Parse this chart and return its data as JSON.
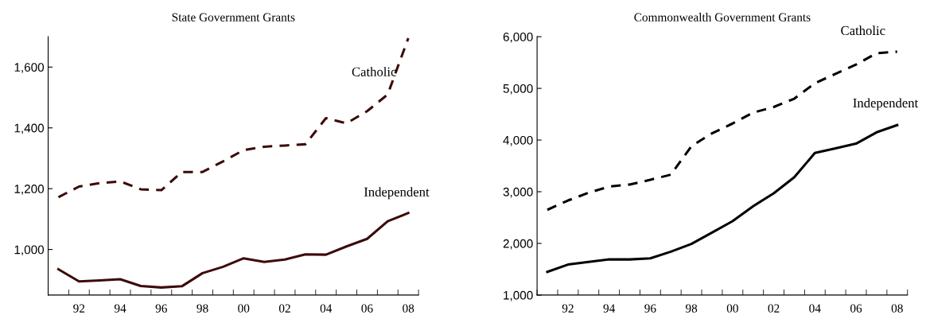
{
  "chart_data": [
    {
      "type": "line",
      "title": "State Government Grants",
      "x": [
        1991,
        1992,
        1993,
        1994,
        1995,
        1996,
        1997,
        1998,
        1999,
        2000,
        2001,
        2002,
        2003,
        2004,
        2005,
        2006,
        2007,
        2008
      ],
      "series": [
        {
          "name": "Catholic",
          "color": "#3d0a0a",
          "line_style": "dashed",
          "values": [
            1172,
            1207,
            1218,
            1224,
            1198,
            1195,
            1255,
            1255,
            1290,
            1327,
            1338,
            1342,
            1346,
            1432,
            1415,
            1455,
            1510,
            1695
          ]
        },
        {
          "name": "Independent",
          "color": "#3d0a0a",
          "line_style": "solid",
          "values": [
            935,
            895,
            898,
            902,
            880,
            875,
            879,
            922,
            943,
            971,
            959,
            967,
            984,
            983,
            1010,
            1035,
            1093,
            1120
          ]
        }
      ],
      "xlim": [
        1990.5,
        2008.5
      ],
      "xticks": [
        {
          "value": 1990.5,
          "label": null
        },
        {
          "value": 1991.5,
          "label": null
        },
        {
          "value": 1992,
          "label": "92"
        },
        {
          "value": 1992.5,
          "label": null
        },
        {
          "value": 1993.5,
          "label": null
        },
        {
          "value": 1994,
          "label": "94"
        },
        {
          "value": 1994.5,
          "label": null
        },
        {
          "value": 1995.5,
          "label": null
        },
        {
          "value": 1996,
          "label": "96"
        },
        {
          "value": 1996.5,
          "label": null
        },
        {
          "value": 1997.5,
          "label": null
        },
        {
          "value": 1998,
          "label": "98"
        },
        {
          "value": 1998.5,
          "label": null
        },
        {
          "value": 1999.5,
          "label": null
        },
        {
          "value": 2000,
          "label": "00"
        },
        {
          "value": 2000.5,
          "label": null
        },
        {
          "value": 2001.5,
          "label": null
        },
        {
          "value": 2002,
          "label": "02"
        },
        {
          "value": 2002.5,
          "label": null
        },
        {
          "value": 2003.5,
          "label": null
        },
        {
          "value": 2004,
          "label": "04"
        },
        {
          "value": 2004.5,
          "label": null
        },
        {
          "value": 2005.5,
          "label": null
        },
        {
          "value": 2006,
          "label": "06"
        },
        {
          "value": 2006.5,
          "label": null
        },
        {
          "value": 2007.5,
          "label": null
        },
        {
          "value": 2008,
          "label": "08"
        },
        {
          "value": 2008.5,
          "label": null
        }
      ],
      "ylim": [
        850,
        1700
      ],
      "yticks": [
        {
          "value": 1000,
          "label": "1,000"
        },
        {
          "value": 1200,
          "label": "1,200"
        },
        {
          "value": 1400,
          "label": "1,400"
        },
        {
          "value": 1600,
          "label": "1,600"
        }
      ],
      "grid": false,
      "legend": false
    },
    {
      "type": "line",
      "title": "Commonwealth Government Grants",
      "x": [
        1991,
        1992,
        1993,
        1994,
        1995,
        1996,
        1997,
        1998,
        1999,
        2000,
        2001,
        2002,
        2003,
        2004,
        2005,
        2006,
        2007,
        2008
      ],
      "series": [
        {
          "name": "Catholic",
          "color": "#000000",
          "line_style": "dashed",
          "values": [
            2650,
            2830,
            2980,
            3100,
            3140,
            3230,
            3330,
            3880,
            4130,
            4320,
            4530,
            4640,
            4800,
            5100,
            5280,
            5460,
            5680,
            5710
          ]
        },
        {
          "name": "Independent",
          "color": "#000000",
          "line_style": "solid",
          "values": [
            1450,
            1590,
            1640,
            1690,
            1690,
            1710,
            1840,
            1990,
            2210,
            2430,
            2720,
            2970,
            3280,
            3750,
            3840,
            3930,
            4150,
            4290
          ]
        }
      ],
      "xlim": [
        1990.5,
        2008.5
      ],
      "xticks": [
        {
          "value": 1990.5,
          "label": null
        },
        {
          "value": 1991.5,
          "label": null
        },
        {
          "value": 1992,
          "label": "92"
        },
        {
          "value": 1992.5,
          "label": null
        },
        {
          "value": 1993.5,
          "label": null
        },
        {
          "value": 1994,
          "label": "94"
        },
        {
          "value": 1994.5,
          "label": null
        },
        {
          "value": 1995.5,
          "label": null
        },
        {
          "value": 1996,
          "label": "96"
        },
        {
          "value": 1996.5,
          "label": null
        },
        {
          "value": 1997.5,
          "label": null
        },
        {
          "value": 1998,
          "label": "98"
        },
        {
          "value": 1998.5,
          "label": null
        },
        {
          "value": 1999.5,
          "label": null
        },
        {
          "value": 2000,
          "label": "00"
        },
        {
          "value": 2000.5,
          "label": null
        },
        {
          "value": 2001.5,
          "label": null
        },
        {
          "value": 2002,
          "label": "02"
        },
        {
          "value": 2002.5,
          "label": null
        },
        {
          "value": 2003.5,
          "label": null
        },
        {
          "value": 2004,
          "label": "04"
        },
        {
          "value": 2004.5,
          "label": null
        },
        {
          "value": 2005.5,
          "label": null
        },
        {
          "value": 2006,
          "label": "06"
        },
        {
          "value": 2006.5,
          "label": null
        },
        {
          "value": 2007.5,
          "label": null
        },
        {
          "value": 2008,
          "label": "08"
        },
        {
          "value": 2008.5,
          "label": null
        }
      ],
      "ylim": [
        1000,
        6000
      ],
      "yticks": [
        {
          "value": 1000,
          "label": "1,000"
        },
        {
          "value": 2000,
          "label": "2,000"
        },
        {
          "value": 3000,
          "label": "3,000"
        },
        {
          "value": 4000,
          "label": "4,000"
        },
        {
          "value": 5000,
          "label": "5,000"
        },
        {
          "value": 6000,
          "label": "6,000"
        }
      ],
      "grid": false,
      "legend": false
    }
  ]
}
